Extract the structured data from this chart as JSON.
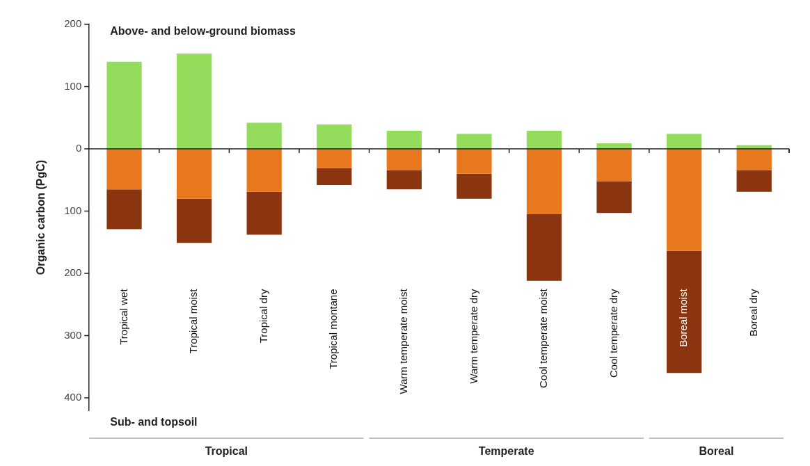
{
  "chart_data": {
    "type": "bar",
    "stacked": true,
    "ylabel": "Organic carbon (PgC)",
    "categories": [
      "Tropical wet",
      "Tropical moist",
      "Tropical dry",
      "Tropical montane",
      "Warm temperate moist",
      "Warm temperate dry",
      "Cool temperate moist",
      "Cool temperate dry",
      "Boreal moist",
      "Boreal dry"
    ],
    "series": [
      {
        "color": "#94dc5c",
        "values": [
          140,
          153,
          42,
          39,
          29,
          24,
          29,
          9,
          24,
          6
        ]
      },
      {
        "color": "#e8781e",
        "values": [
          -65,
          -80,
          -69,
          -31,
          -34,
          -40,
          -105,
          -52,
          -164,
          -34
        ]
      },
      {
        "color": "#8a3510",
        "values": [
          -64,
          -71,
          -69,
          -27,
          -31,
          -40,
          -107,
          -51,
          -196,
          -35
        ]
      }
    ],
    "ylim": [
      -420,
      200
    ],
    "yticks": [
      200,
      100,
      0,
      {
        "value": -100,
        "label": "100"
      },
      {
        "value": -200,
        "label": "200"
      },
      {
        "value": -300,
        "label": "300"
      },
      {
        "value": -400,
        "label": "400"
      }
    ],
    "ref_lines": [
      {
        "axis": "y",
        "value": 0,
        "color": "#222222"
      }
    ],
    "grid": false,
    "legend": false,
    "annotations": [
      "Above- and below-ground biomass",
      "Sub- and topsoil",
      "Tropical",
      "Temperate",
      "Boreal"
    ]
  }
}
